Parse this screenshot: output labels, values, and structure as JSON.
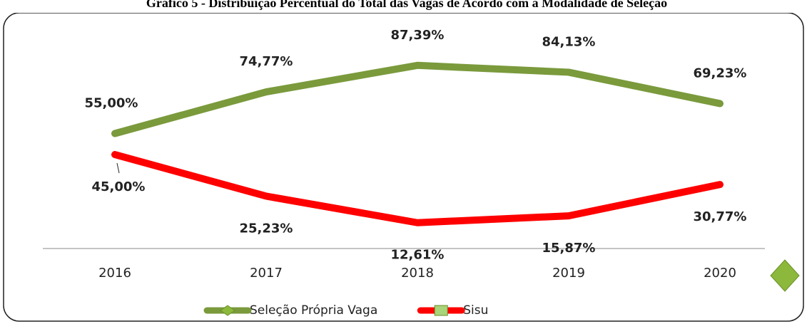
{
  "chart_data": {
    "type": "line",
    "title": "Gráfico 5 - Distribuição Percentual do Total das Vagas de Acordo com a Modalidade de Seleção",
    "categories": [
      "2016",
      "2017",
      "2018",
      "2019",
      "2020"
    ],
    "series": [
      {
        "name": "Seleção Própria Vaga",
        "color": "#7a9a3c",
        "values": [
          55.0,
          74.77,
          87.39,
          84.13,
          69.23
        ],
        "value_labels": [
          "55,00%",
          "74,77%",
          "87,39%",
          "84,13%",
          "69,23%"
        ]
      },
      {
        "name": "Sisu",
        "color": "#ff0000",
        "values": [
          45.0,
          25.23,
          12.61,
          15.87,
          30.77
        ],
        "value_labels": [
          "45,00%",
          "25,23%",
          "12,61%",
          "15,87%",
          "30,77%"
        ]
      }
    ],
    "ylim": [
      0,
      110
    ],
    "legend": "bottom"
  }
}
